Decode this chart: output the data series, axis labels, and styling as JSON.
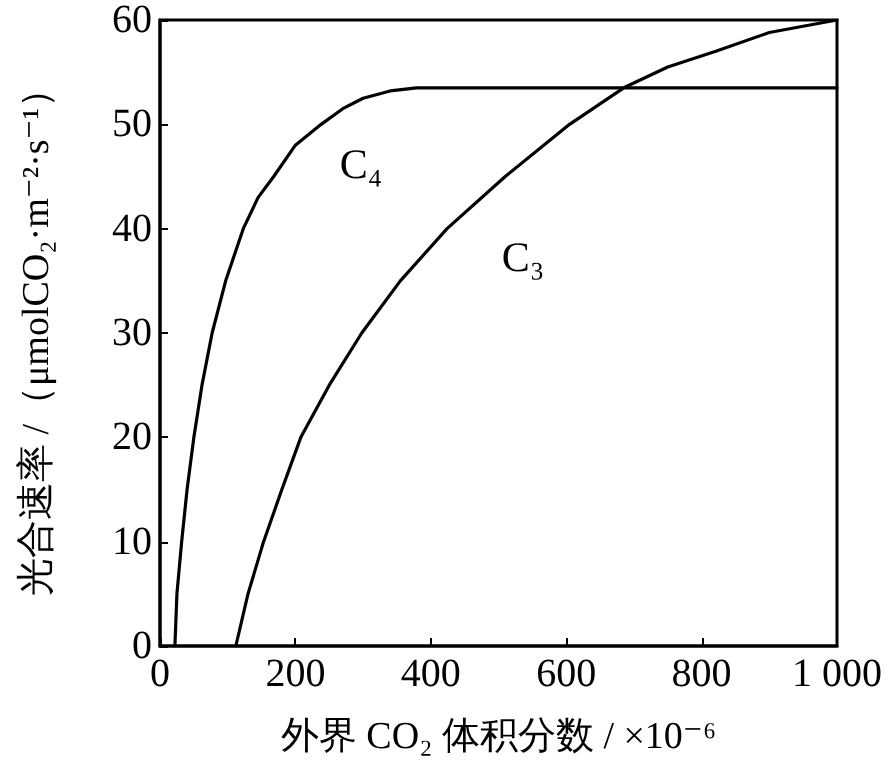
{
  "chart_data": {
    "type": "line",
    "xlabel": "外界 CO₂ 体积分数 / ×10⁻⁶",
    "ylabel": "光合速率 /（μmolCO₂·m⁻²·s⁻¹）",
    "xlim": [
      0,
      1000
    ],
    "xticks": [
      0,
      200,
      400,
      600,
      800,
      {
        "value": 1000,
        "label": "1 000"
      }
    ],
    "ylim": [
      0,
      60
    ],
    "yticks": [
      0,
      10,
      20,
      30,
      40,
      50,
      60
    ],
    "marker": "none",
    "line_style": "solid",
    "series": [
      {
        "name": "C₄",
        "color": "#000000",
        "x": [
          22,
          25,
          32,
          40,
          50,
          62,
          77,
          97,
          123,
          145,
          168,
          200,
          238,
          270,
          300,
          340,
          379,
          1000
        ],
        "values": [
          0,
          5,
          10,
          15,
          20,
          25,
          30,
          35,
          40,
          43,
          45,
          48,
          50,
          51.5,
          52.5,
          53.2,
          53.5,
          53.5
        ]
      },
      {
        "name": "C₃",
        "color": "#000000",
        "x": [
          112,
          130,
          153,
          180,
          208,
          250,
          298,
          355,
          424,
          510,
          605,
          685,
          750,
          821,
          900,
          1000
        ],
        "values": [
          0,
          5,
          10,
          15,
          20,
          25,
          30,
          35,
          40,
          45,
          50,
          53.5,
          55.5,
          57,
          58.8,
          60
        ]
      }
    ]
  }
}
